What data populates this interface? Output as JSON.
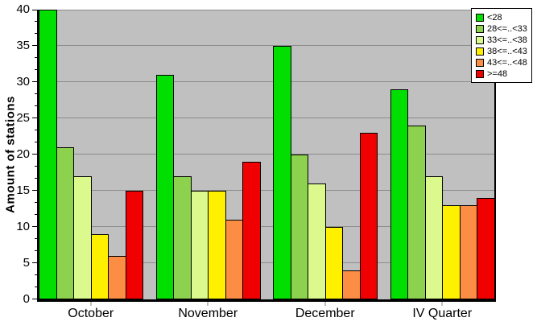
{
  "chart_data": {
    "type": "bar",
    "title": "",
    "xlabel": "",
    "ylabel": "Amount of stations",
    "categories": [
      "October",
      "November",
      "December",
      "IV Quarter"
    ],
    "series": [
      {
        "name": "<28",
        "color": "#00df00",
        "values": [
          40,
          31,
          35,
          29
        ]
      },
      {
        "name": "28<=..<33",
        "color": "#8cd24e",
        "values": [
          21,
          17,
          20,
          24
        ]
      },
      {
        "name": "33<=..<38",
        "color": "#dcf98d",
        "values": [
          17,
          15,
          16,
          17
        ]
      },
      {
        "name": "38<=..<43",
        "color": "#fff000",
        "values": [
          9,
          15,
          10,
          13
        ]
      },
      {
        "name": "43<=..<48",
        "color": "#fc8d44",
        "values": [
          6,
          11,
          4,
          13
        ]
      },
      {
        "name": ">=48",
        "color": "#f00000",
        "values": [
          15,
          19,
          23,
          14
        ]
      }
    ],
    "ylim": [
      0,
      40
    ],
    "ytick_step": 5,
    "yticks": [
      0,
      5,
      10,
      15,
      20,
      25,
      30,
      35,
      40
    ],
    "grid": true,
    "legend_position": "top-right",
    "plot_bg": "#c0c0c0",
    "gridline_color": "#8c8c8c"
  }
}
